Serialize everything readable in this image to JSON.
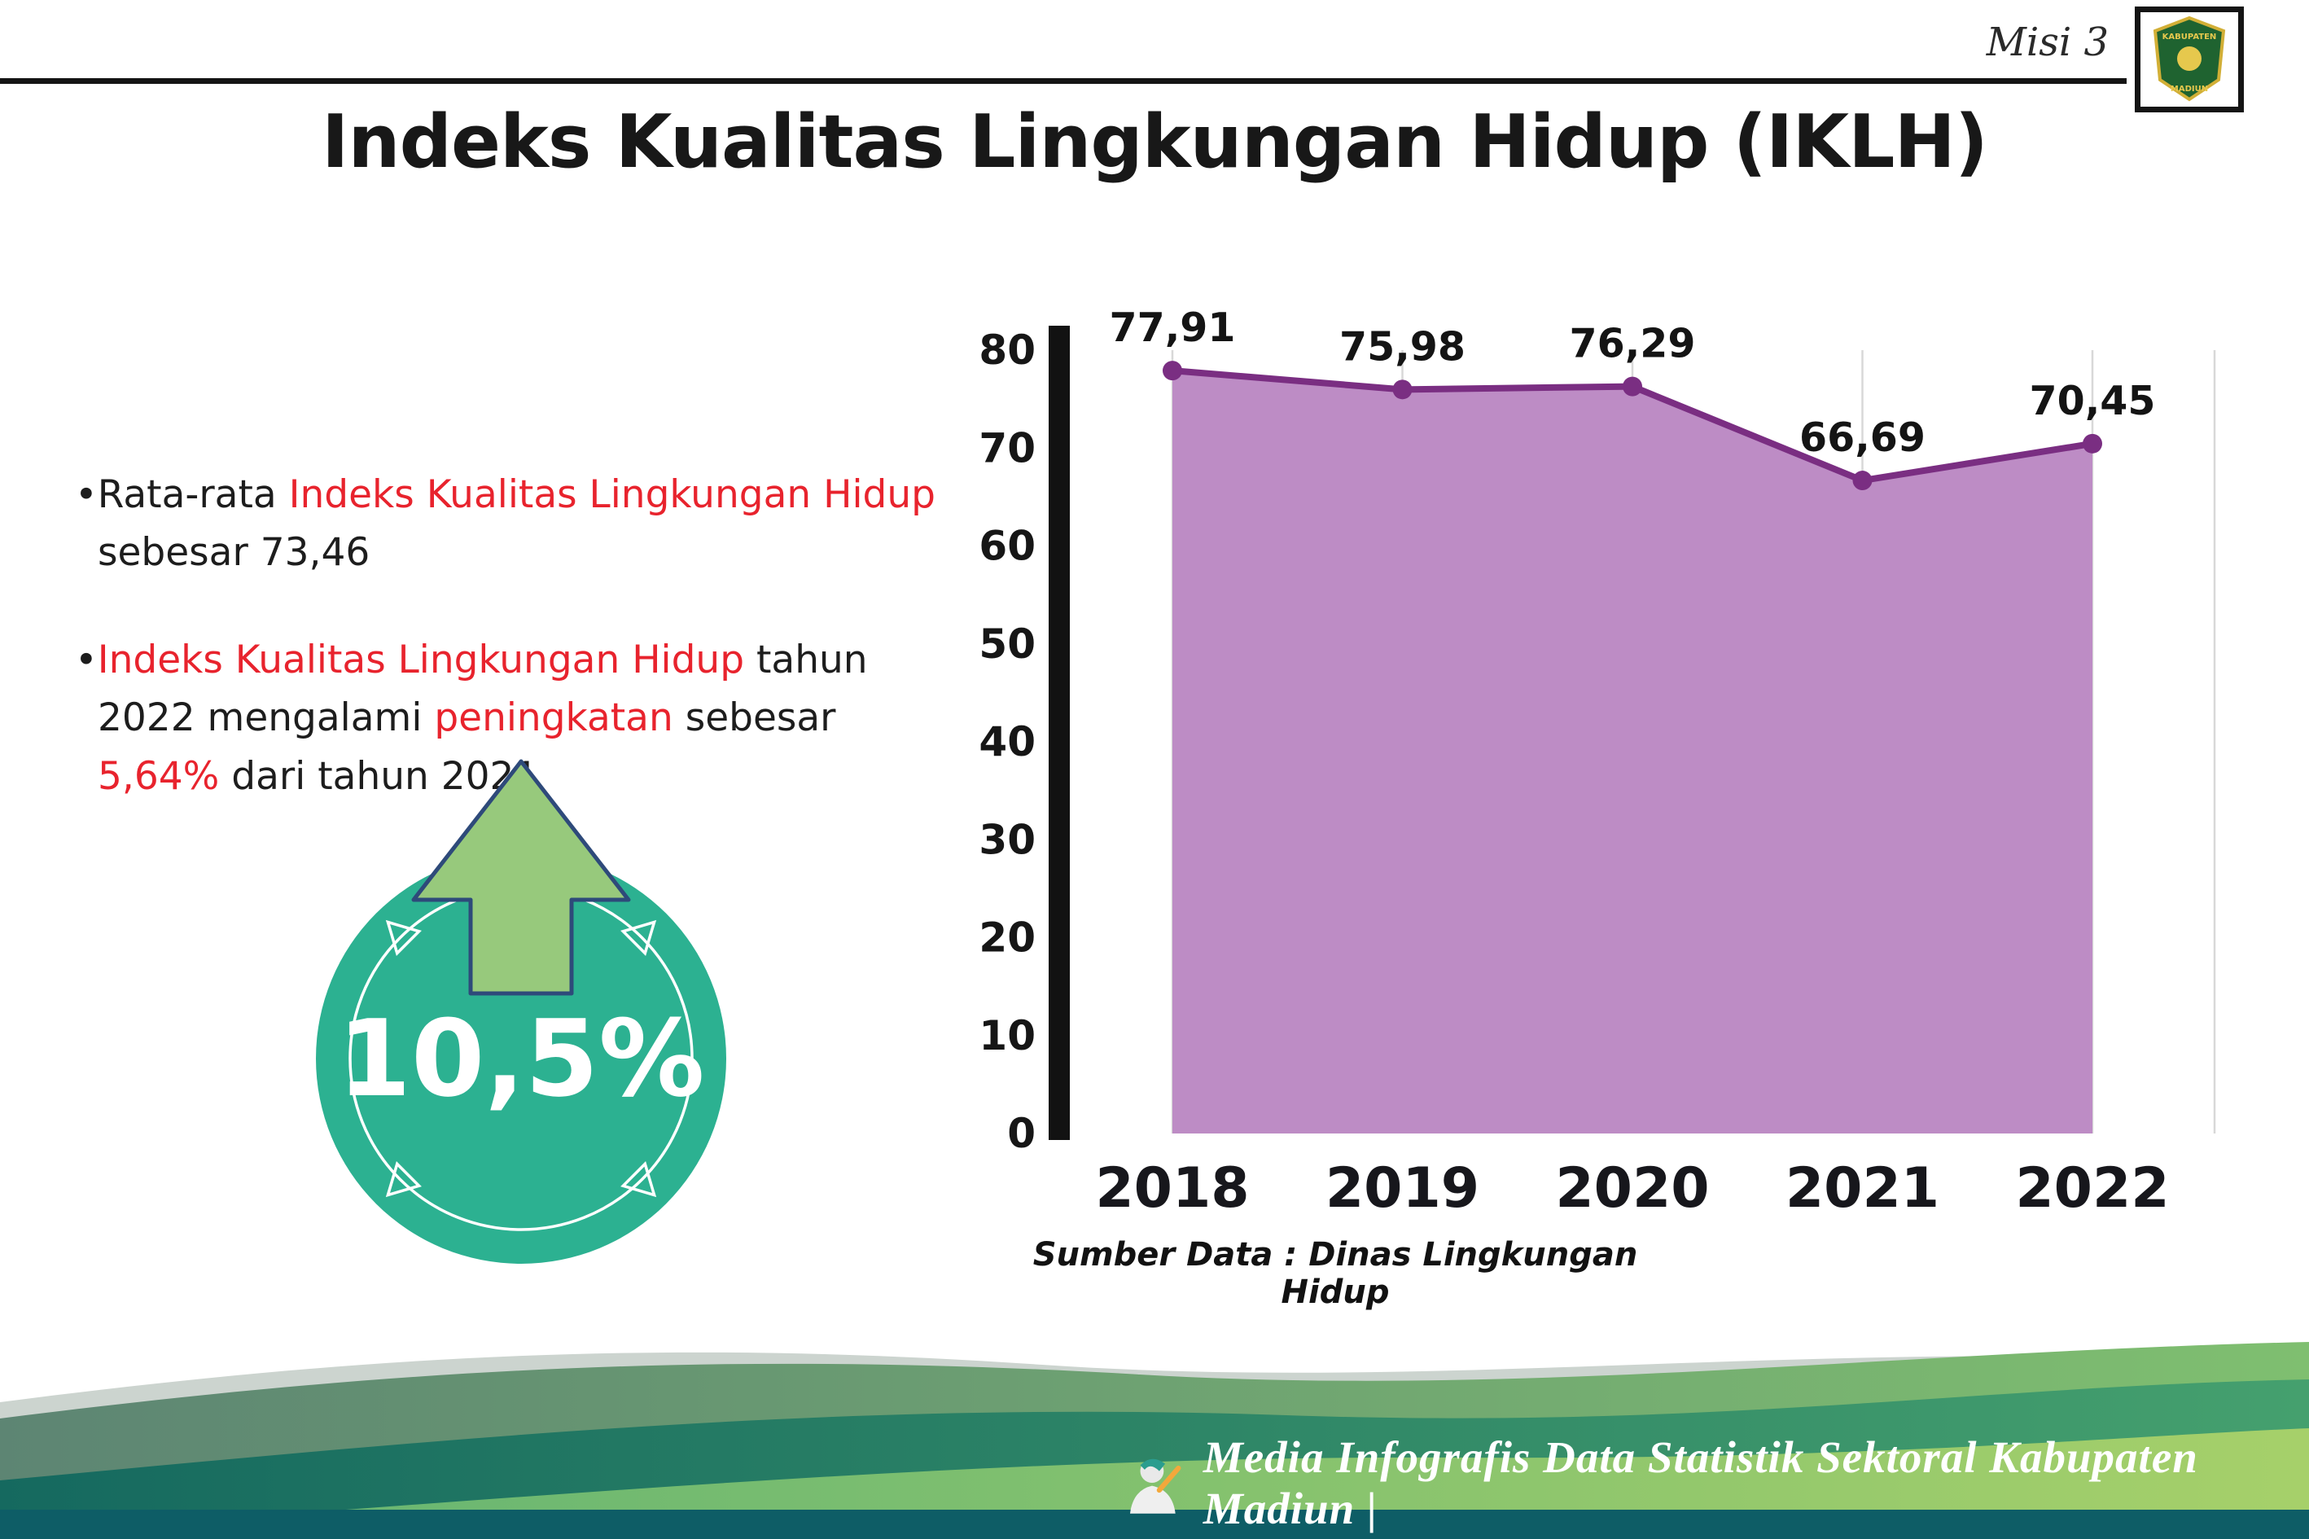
{
  "header": {
    "misi": "Misi 3",
    "title": "Indeks Kualitas Lingkungan Hidup (IKLH)"
  },
  "logo": {
    "line1": "KABUPATEN",
    "line2": "MADIUN"
  },
  "bullets": {
    "marker": "•",
    "b1_pre": "Rata-rata ",
    "b1_red": "Indeks Kualitas Lingkungan Hidup",
    "b1_post": " sebesar 73,46",
    "b2_red1": "Indeks Kualitas Lingkungan Hidup",
    "b2_mid1": " tahun 2022 mengalami ",
    "b2_red2": "peningkatan",
    "b2_mid2": " sebesar ",
    "b2_red3": "5,64%",
    "b2_post": " dari tahun 2021"
  },
  "badge": {
    "value": "10,5%"
  },
  "chart_data": {
    "type": "area",
    "title": "Indeks Kualitas Lingkungan Hidup (IKLH)",
    "categories": [
      "2018",
      "2019",
      "2020",
      "2021",
      "2022"
    ],
    "values": [
      77.91,
      75.98,
      76.29,
      66.69,
      70.45
    ],
    "labels": [
      "77,91",
      "75,98",
      "76,29",
      "66,69",
      "70,45"
    ],
    "ylim": [
      0,
      80
    ],
    "yticks": [
      0,
      10,
      20,
      30,
      40,
      50,
      60,
      70,
      80
    ],
    "grid": "vertical-light",
    "legend": "none",
    "source": "Sumber Data : Dinas Lingkungan Hidup",
    "area_color": "#bd8cc5",
    "line_color": "#7a2e82"
  },
  "footer": {
    "credit": "Media Infografis Data Statistik Sektoral Kabupaten Madiun |"
  },
  "colors": {
    "accent_red": "#e8232d",
    "badge_teal": "#2cb191",
    "arrow_green": "#97c97c",
    "arrow_outline": "#2e4a7a",
    "area_purple": "#bd8cc5",
    "line_purple": "#7a2e82",
    "footer_dark_teal": "#0e5d66",
    "axis_black": "#121212"
  }
}
